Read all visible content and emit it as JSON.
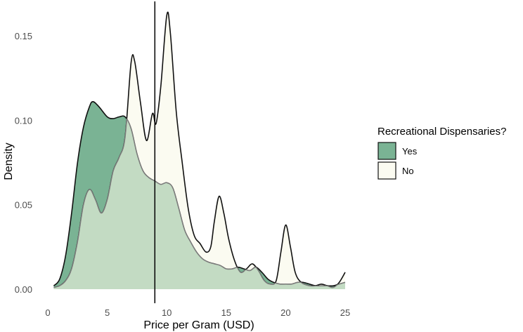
{
  "chart_data": {
    "type": "area",
    "title": "",
    "xlabel": "Price per Gram (USD)",
    "ylabel": "Density",
    "xlim": [
      0,
      25
    ],
    "ylim": [
      0,
      0.16
    ],
    "x_ticks": [
      0,
      5,
      10,
      15,
      20,
      25
    ],
    "x_tick_labels": [
      "0",
      "5",
      "10",
      "15",
      "20",
      "25"
    ],
    "y_ticks": [
      0,
      0.05,
      0.1,
      0.15
    ],
    "y_tick_labels": [
      "0.00",
      "0.05",
      "0.10",
      "0.15"
    ],
    "grid": false,
    "legend": {
      "title": "Recreational Dispensaries?",
      "placement": "right",
      "entries": [
        {
          "label": "Yes",
          "color": "#7ab394"
        },
        {
          "label": "No",
          "color": "#fbfbf1"
        }
      ]
    },
    "vline_x": 9,
    "colors": {
      "yes_fill": "#7ab394",
      "no_fill": "#fbfbf1",
      "yes_overlay": "#c3dbc3",
      "outline": "#111111",
      "overlay_outline": "#7d7d7d",
      "vline": "#000000"
    },
    "series": [
      {
        "name": "Yes",
        "points": [
          [
            0.5,
            0.002
          ],
          [
            1,
            0.006
          ],
          [
            1.5,
            0.02
          ],
          [
            2,
            0.045
          ],
          [
            2.5,
            0.075
          ],
          [
            3,
            0.096
          ],
          [
            3.5,
            0.108
          ],
          [
            3.8,
            0.111
          ],
          [
            4.3,
            0.108
          ],
          [
            5,
            0.102
          ],
          [
            5.5,
            0.101
          ],
          [
            6,
            0.102
          ],
          [
            6.5,
            0.102
          ],
          [
            7,
            0.095
          ],
          [
            7.5,
            0.08
          ],
          [
            8,
            0.07
          ],
          [
            8.5,
            0.066
          ],
          [
            9,
            0.064
          ],
          [
            9.5,
            0.062
          ],
          [
            10,
            0.063
          ],
          [
            10.5,
            0.06
          ],
          [
            11,
            0.048
          ],
          [
            11.5,
            0.035
          ],
          [
            12,
            0.028
          ],
          [
            12.5,
            0.022
          ],
          [
            13,
            0.018
          ],
          [
            13.5,
            0.016
          ],
          [
            14,
            0.015
          ],
          [
            14.5,
            0.014
          ],
          [
            15,
            0.012
          ],
          [
            15.5,
            0.012
          ],
          [
            16,
            0.013
          ],
          [
            16.5,
            0.012
          ],
          [
            17,
            0.011
          ],
          [
            17.5,
            0.013
          ],
          [
            18,
            0.01
          ],
          [
            18.5,
            0.006
          ],
          [
            19,
            0.004
          ],
          [
            19.5,
            0.003
          ],
          [
            20,
            0.003
          ],
          [
            20.5,
            0.003
          ],
          [
            21,
            0.004
          ],
          [
            21.5,
            0.004
          ],
          [
            22,
            0.003
          ],
          [
            22.5,
            0.002
          ],
          [
            23,
            0.002
          ],
          [
            23.5,
            0.002
          ],
          [
            24,
            0.002
          ],
          [
            24.5,
            0.003
          ],
          [
            25,
            0.004
          ]
        ]
      },
      {
        "name": "No",
        "points": [
          [
            0.5,
            0.001
          ],
          [
            1,
            0.002
          ],
          [
            1.5,
            0.005
          ],
          [
            2,
            0.012
          ],
          [
            2.5,
            0.028
          ],
          [
            3,
            0.05
          ],
          [
            3.5,
            0.059
          ],
          [
            4,
            0.053
          ],
          [
            4.5,
            0.045
          ],
          [
            5,
            0.053
          ],
          [
            5.5,
            0.07
          ],
          [
            6,
            0.078
          ],
          [
            6.5,
            0.09
          ],
          [
            7,
            0.134
          ],
          [
            7.3,
            0.135
          ],
          [
            7.8,
            0.11
          ],
          [
            8.3,
            0.088
          ],
          [
            8.8,
            0.104
          ],
          [
            9.1,
            0.098
          ],
          [
            9.5,
            0.12
          ],
          [
            10,
            0.162
          ],
          [
            10.3,
            0.152
          ],
          [
            10.8,
            0.105
          ],
          [
            11.3,
            0.075
          ],
          [
            11.8,
            0.048
          ],
          [
            12.3,
            0.032
          ],
          [
            12.8,
            0.027
          ],
          [
            13.3,
            0.022
          ],
          [
            13.7,
            0.025
          ],
          [
            14,
            0.04
          ],
          [
            14.4,
            0.055
          ],
          [
            14.8,
            0.045
          ],
          [
            15.2,
            0.03
          ],
          [
            15.7,
            0.017
          ],
          [
            16.2,
            0.01
          ],
          [
            16.7,
            0.012
          ],
          [
            17.2,
            0.015
          ],
          [
            17.7,
            0.011
          ],
          [
            18.2,
            0.005
          ],
          [
            18.7,
            0.003
          ],
          [
            19.2,
            0.005
          ],
          [
            19.6,
            0.022
          ],
          [
            20,
            0.038
          ],
          [
            20.4,
            0.025
          ],
          [
            20.8,
            0.01
          ],
          [
            21.3,
            0.004
          ],
          [
            22,
            0.002
          ],
          [
            22.5,
            0.002
          ],
          [
            23,
            0.003
          ],
          [
            23.5,
            0.002
          ],
          [
            24,
            0.001
          ],
          [
            24.5,
            0.004
          ],
          [
            25,
            0.01
          ]
        ]
      }
    ]
  }
}
